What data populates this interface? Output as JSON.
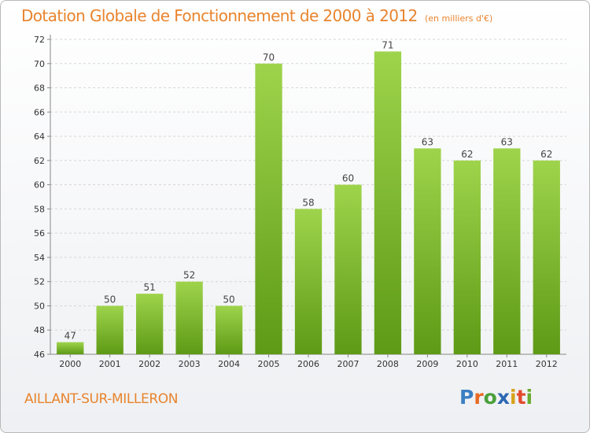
{
  "header": {
    "title": "Dotation Globale de Fonctionnement de 2000 à 2012",
    "unit": "(en milliers d'€)"
  },
  "footer": {
    "commune": "AILLANT-SUR-MILLERON",
    "logo_text": "Proxiti"
  },
  "colors": {
    "accent": "#e8842d",
    "bar_top": "#9ed44c",
    "bar_bottom": "#5e9a16",
    "grid": "#d6d6d6"
  },
  "chart_data": {
    "type": "bar",
    "title": "Dotation Globale de Fonctionnement de 2000 à 2012",
    "xlabel": "",
    "ylabel": "",
    "categories": [
      "2000",
      "2001",
      "2002",
      "2003",
      "2004",
      "2005",
      "2006",
      "2007",
      "2008",
      "2009",
      "2010",
      "2011",
      "2012"
    ],
    "values": [
      47,
      50,
      51,
      52,
      50,
      70,
      58,
      60,
      71,
      63,
      62,
      63,
      62
    ],
    "ylim": [
      46,
      72
    ],
    "yticks": [
      46,
      48,
      50,
      52,
      54,
      56,
      58,
      60,
      62,
      64,
      66,
      68,
      70,
      72
    ],
    "grid": true,
    "data_labels": true
  }
}
